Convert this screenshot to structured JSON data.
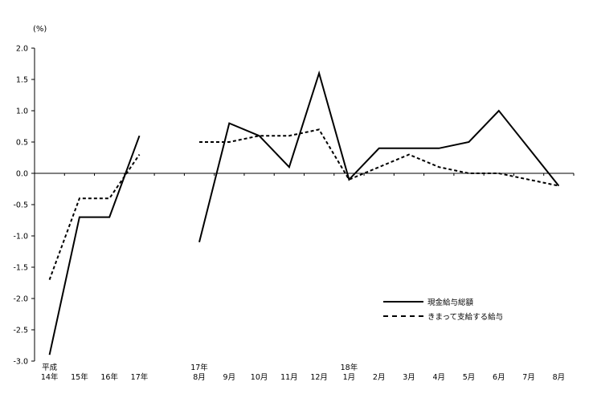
{
  "chart_data": {
    "type": "line",
    "title": "",
    "unit_label": "(%)",
    "xlabel": "",
    "ylabel": "(%)",
    "ylim": [
      -3.0,
      2.0
    ],
    "y_tick_step": 0.5,
    "y_ticks": [
      "2.0",
      "1.5",
      "1.0",
      "0.5",
      "0.0",
      "-0.5",
      "-1.0",
      "-1.5",
      "-2.0",
      "-2.5",
      "-3.0"
    ],
    "grid": false,
    "legend_position": "inside-lower-right",
    "colors": {
      "line": "#000000",
      "text": "#000000",
      "background": "#ffffff"
    },
    "categories_row1": [
      "平成",
      "",
      "",
      "",
      "",
      "17年",
      "",
      "",
      "",
      "",
      "18年",
      "",
      "",
      "",
      "",
      "",
      "",
      ""
    ],
    "categories_row2": [
      "14年",
      "15年",
      "16年",
      "17年",
      "",
      "8月",
      "9月",
      "10月",
      "11月",
      "12月",
      "1月",
      "2月",
      "3月",
      "4月",
      "5月",
      "6月",
      "7月",
      "8月"
    ],
    "series": [
      {
        "name": "現金給与総額",
        "style": "solid",
        "values": [
          -2.9,
          -0.7,
          -0.7,
          0.6,
          null,
          -1.1,
          0.8,
          0.6,
          0.1,
          1.6,
          -0.1,
          0.4,
          0.4,
          0.4,
          0.5,
          1.0,
          0.4,
          -0.2
        ]
      },
      {
        "name": "きまって支給する給与",
        "style": "dashed",
        "values": [
          -1.7,
          -0.4,
          -0.4,
          0.3,
          null,
          0.5,
          0.5,
          0.6,
          0.6,
          0.7,
          -0.1,
          0.1,
          0.3,
          0.1,
          0.0,
          0.0,
          -0.1,
          -0.2
        ]
      }
    ]
  }
}
